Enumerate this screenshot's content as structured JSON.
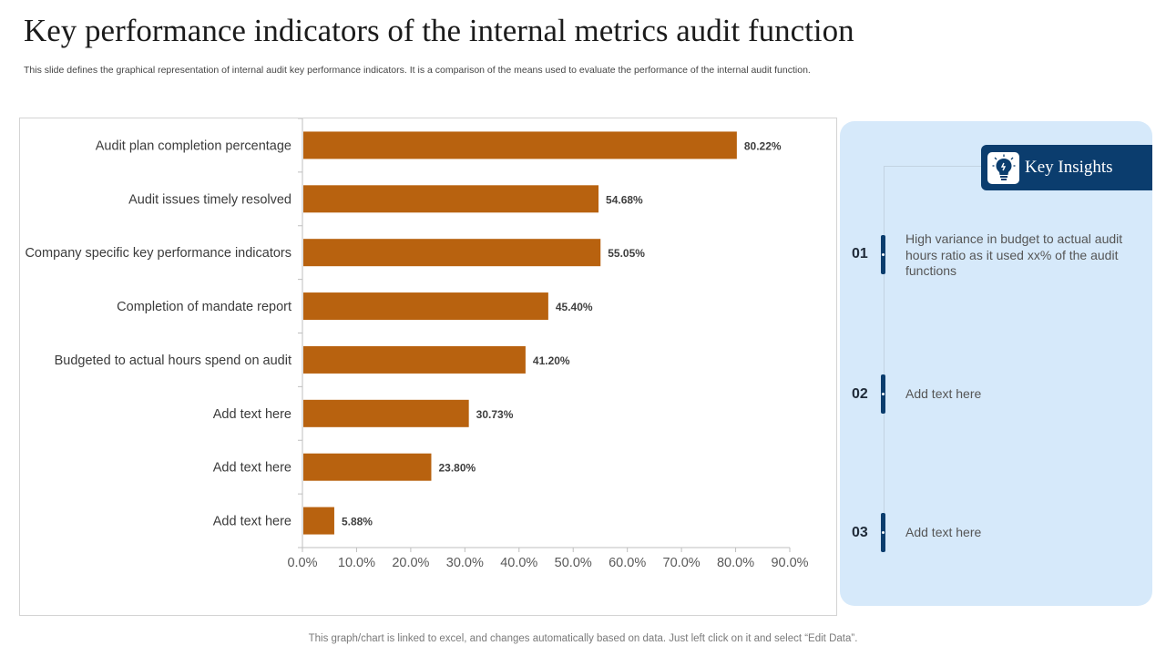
{
  "slide": {
    "title": "Key performance indicators of the internal metrics audit function",
    "subtitle": "This slide defines the graphical representation of internal audit key performance indicators. It is a comparison of the means used to evaluate the performance of the internal audit function.",
    "footer": "This graph/chart is linked to excel,  and changes automatically based on data. Just left click on it and select “Edit Data”."
  },
  "chart_data": {
    "type": "bar",
    "orientation": "horizontal",
    "categories": [
      "Audit plan completion percentage",
      "Audit issues timely resolved",
      "Company specific key performance indicators",
      "Completion of mandate report",
      "Budgeted to actual hours spend on audit",
      "Add text here",
      "Add text here",
      "Add text here"
    ],
    "values": [
      80.22,
      54.68,
      55.05,
      45.4,
      41.2,
      30.73,
      23.8,
      5.88
    ],
    "value_labels": [
      "80.22%",
      "54.68%",
      "55.05%",
      "45.40%",
      "41.20%",
      "30.73%",
      "23.80%",
      "5.88%"
    ],
    "xlim": [
      0,
      90
    ],
    "x_ticks": [
      "0.0%",
      "10.0%",
      "20.0%",
      "30.0%",
      "40.0%",
      "50.0%",
      "60.0%",
      "70.0%",
      "80.0%",
      "90.0%"
    ],
    "title": "",
    "xlabel": "",
    "ylabel": "",
    "bar_color": "#b8620f",
    "grid": false
  },
  "insights": {
    "title": "Key Insights",
    "icon": "lightbulb-icon",
    "accent_color": "#0b3d6e",
    "panel_color": "#d6e9fa",
    "items": [
      {
        "num": "01",
        "text": "High variance in  budget to actual audit hours ratio as it used xx% of the audit functions"
      },
      {
        "num": "02",
        "text": "Add text here"
      },
      {
        "num": "03",
        "text": "Add text here"
      }
    ]
  }
}
